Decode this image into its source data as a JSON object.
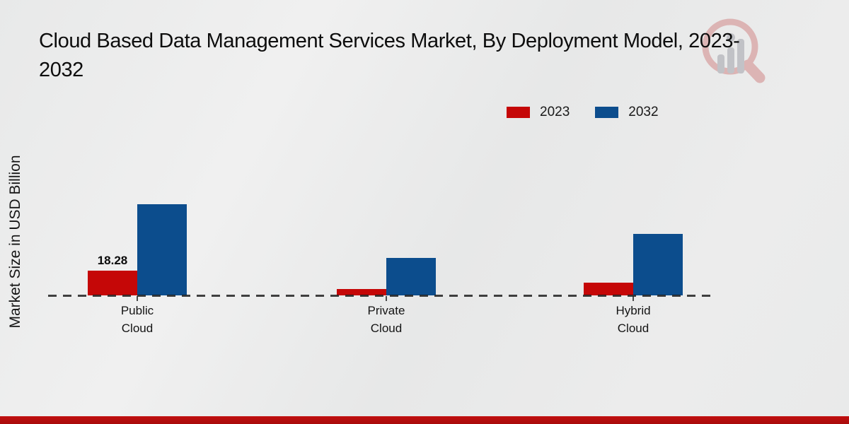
{
  "title": {
    "line1": "Cloud Based Data Management Services Market, By Deployment Model, 2023-",
    "line2": "2032"
  },
  "y_axis_label": "Market Size in USD Billion",
  "legend": {
    "items": [
      {
        "label": "2023",
        "color": "#c50707"
      },
      {
        "label": "2032",
        "color": "#0c4d8d"
      }
    ]
  },
  "chart_data": {
    "type": "bar",
    "title": "Cloud Based Data Management Services Market, By Deployment Model, 2023-2032",
    "ylabel": "Market Size in USD Billion",
    "xlabel": "",
    "categories": [
      "Public Cloud",
      "Private Cloud",
      "Hybrid Cloud"
    ],
    "series": [
      {
        "name": "2023",
        "color": "#c50707",
        "values": [
          18.28,
          4.7,
          9.4
        ],
        "value_labels": [
          "18.28",
          "",
          ""
        ]
      },
      {
        "name": "2032",
        "color": "#0c4d8d",
        "values": [
          67.2,
          27.7,
          45.5
        ],
        "value_labels": [
          "",
          "",
          ""
        ]
      }
    ],
    "ylim": [
      0,
      75
    ],
    "grid": false,
    "baseline_style": "dashed",
    "legend_position": "top-right"
  },
  "watermark": {
    "name": "market-research-magnifier-logo"
  },
  "footer": {
    "accent_color": "#b50d0d"
  }
}
